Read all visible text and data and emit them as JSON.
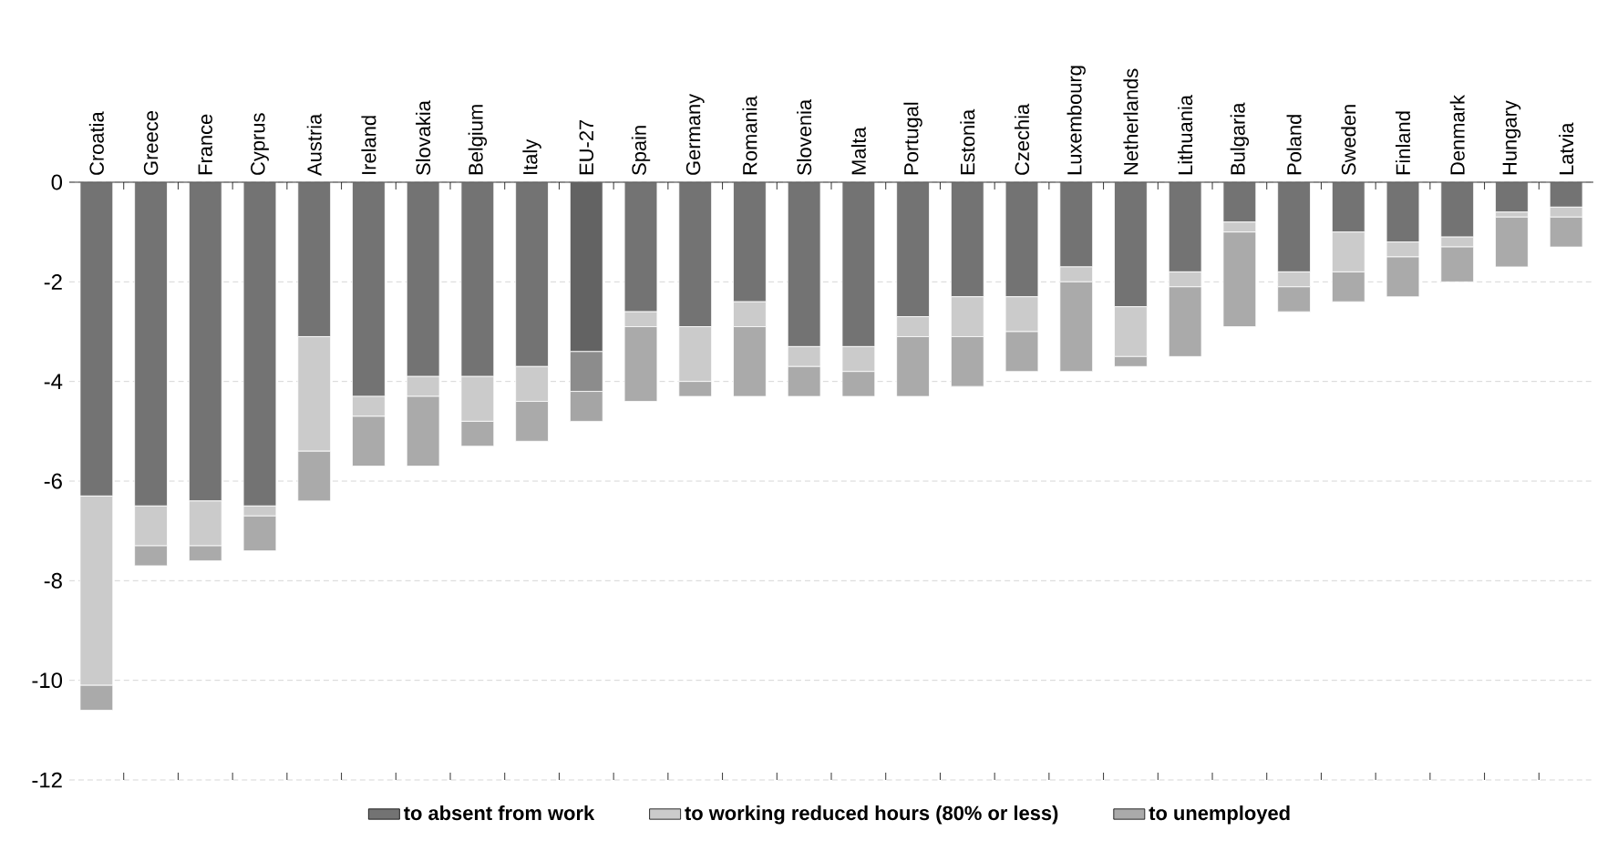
{
  "chart_data": {
    "type": "bar",
    "stacked": true,
    "categories": [
      "Croatia",
      "Greece",
      "France",
      "Cyprus",
      "Austria",
      "Ireland",
      "Slovakia",
      "Belgium",
      "Italy",
      "EU-27",
      "Spain",
      "Germany",
      "Romania",
      "Slovenia",
      "Malta",
      "Portugal",
      "Estonia",
      "Czechia",
      "Luxembourg",
      "Netherlands",
      "Lithuania",
      "Bulgaria",
      "Poland",
      "Sweden",
      "Finland",
      "Denmark",
      "Hungary",
      "Latvia"
    ],
    "series": [
      {
        "name": "to absent from work",
        "color": "#737373",
        "colors": [
          "#737373",
          "#737373",
          "#737373",
          "#737373",
          "#737373",
          "#737373",
          "#737373",
          "#737373",
          "#737373",
          "#636363",
          "#737373",
          "#737373",
          "#737373",
          "#737373",
          "#737373",
          "#737373",
          "#737373",
          "#737373",
          "#737373",
          "#737373",
          "#737373",
          "#737373",
          "#737373",
          "#737373",
          "#737373",
          "#737373",
          "#737373",
          "#737373"
        ],
        "values": [
          -6.3,
          -6.5,
          -6.4,
          -6.5,
          -3.1,
          -4.3,
          -3.9,
          -3.9,
          -3.7,
          -3.4,
          -2.6,
          -2.9,
          -2.4,
          -3.3,
          -3.3,
          -2.7,
          -2.3,
          -2.3,
          -1.7,
          -2.5,
          -1.8,
          -0.8,
          -1.8,
          -1.0,
          -1.2,
          -1.1,
          -0.6,
          -0.5
        ]
      },
      {
        "name": "to working reduced hours (80% or less)",
        "color": "#cbcbcb",
        "colors": [
          "#cbcbcb",
          "#cbcbcb",
          "#cbcbcb",
          "#cbcbcb",
          "#cbcbcb",
          "#cbcbcb",
          "#cbcbcb",
          "#cbcbcb",
          "#cbcbcb",
          "#8c8c8c",
          "#cbcbcb",
          "#cbcbcb",
          "#cbcbcb",
          "#cbcbcb",
          "#cbcbcb",
          "#cbcbcb",
          "#cbcbcb",
          "#cbcbcb",
          "#cbcbcb",
          "#cbcbcb",
          "#cbcbcb",
          "#cbcbcb",
          "#cbcbcb",
          "#cbcbcb",
          "#cbcbcb",
          "#cbcbcb",
          "#cbcbcb",
          "#cbcbcb"
        ],
        "values": [
          -3.8,
          -0.8,
          -0.9,
          -0.2,
          -2.3,
          -0.4,
          -0.4,
          -0.9,
          -0.7,
          -0.8,
          -0.3,
          -1.1,
          -0.5,
          -0.4,
          -0.5,
          -0.4,
          -0.8,
          -0.7,
          -0.3,
          -1.0,
          -0.3,
          -0.2,
          -0.3,
          -0.8,
          -0.3,
          -0.2,
          -0.1,
          -0.2
        ]
      },
      {
        "name": "to unemployed",
        "color": "#aaaaaa",
        "colors": [
          "#aaaaaa",
          "#aaaaaa",
          "#aaaaaa",
          "#aaaaaa",
          "#aaaaaa",
          "#aaaaaa",
          "#aaaaaa",
          "#aaaaaa",
          "#aaaaaa",
          "#a5a5a5",
          "#aaaaaa",
          "#aaaaaa",
          "#aaaaaa",
          "#aaaaaa",
          "#aaaaaa",
          "#aaaaaa",
          "#aaaaaa",
          "#aaaaaa",
          "#aaaaaa",
          "#aaaaaa",
          "#aaaaaa",
          "#aaaaaa",
          "#aaaaaa",
          "#aaaaaa",
          "#aaaaaa",
          "#aaaaaa",
          "#aaaaaa",
          "#aaaaaa"
        ],
        "values": [
          -0.5,
          -0.4,
          -0.3,
          -0.7,
          -1.0,
          -1.0,
          -1.4,
          -0.5,
          -0.8,
          -0.6,
          -1.5,
          -0.3,
          -1.4,
          -0.6,
          -0.5,
          -1.2,
          -1.0,
          -0.8,
          -1.8,
          -0.2,
          -1.4,
          -1.9,
          -0.5,
          -0.6,
          -0.8,
          -0.7,
          -1.0,
          -0.6
        ]
      }
    ],
    "ylim": [
      -12,
      0
    ],
    "yticks": [
      -12,
      -10,
      -8,
      -6,
      -4,
      -2,
      0
    ],
    "grid": "y",
    "legend": "bottom"
  }
}
